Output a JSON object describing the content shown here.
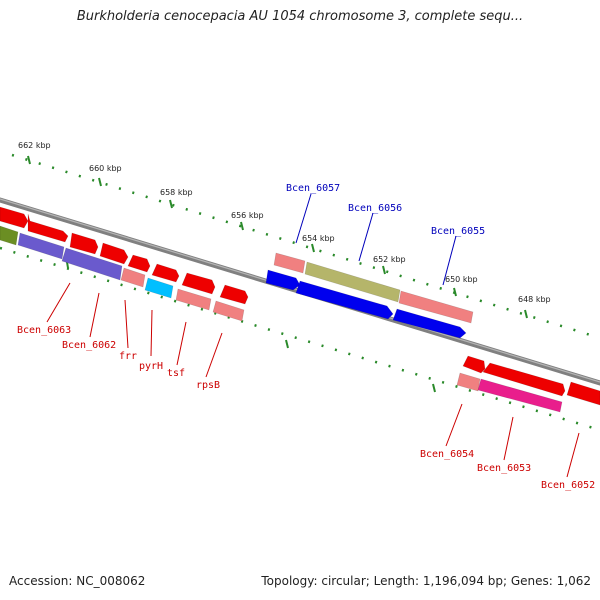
{
  "title": "Burkholderia cenocepacia AU 1054 chromosome 3, complete sequ...",
  "footer": {
    "accession": "Accession: NC_008062",
    "summary": "Topology: circular; Length: 1,196,094 bp; Genes: 1,062"
  },
  "colors": {
    "backbone": "#808080",
    "tick": "#2a8a2a",
    "label_forward": "#0000bb",
    "label_reverse": "#cc0000"
  },
  "ticks": [
    {
      "label": "662 kbp"
    },
    {
      "label": "660 kbp"
    },
    {
      "label": "658 kbp"
    },
    {
      "label": "656 kbp"
    },
    {
      "label": "654 kbp"
    },
    {
      "label": "652 kbp"
    },
    {
      "label": "650 kbp"
    },
    {
      "label": "648 kbp"
    }
  ],
  "gene_labels": [
    {
      "name": "Bcen_6057",
      "strand": "forward"
    },
    {
      "name": "Bcen_6056",
      "strand": "forward"
    },
    {
      "name": "Bcen_6055",
      "strand": "forward"
    },
    {
      "name": "Bcen_6063",
      "strand": "reverse"
    },
    {
      "name": "Bcen_6062",
      "strand": "reverse"
    },
    {
      "name": "frr",
      "strand": "reverse"
    },
    {
      "name": "pyrH",
      "strand": "reverse"
    },
    {
      "name": "tsf",
      "strand": "reverse"
    },
    {
      "name": "rpsB",
      "strand": "reverse"
    },
    {
      "name": "Bcen_6054",
      "strand": "reverse"
    },
    {
      "name": "Bcen_6053",
      "strand": "reverse"
    },
    {
      "name": "Bcen_6052",
      "strand": "reverse"
    }
  ]
}
